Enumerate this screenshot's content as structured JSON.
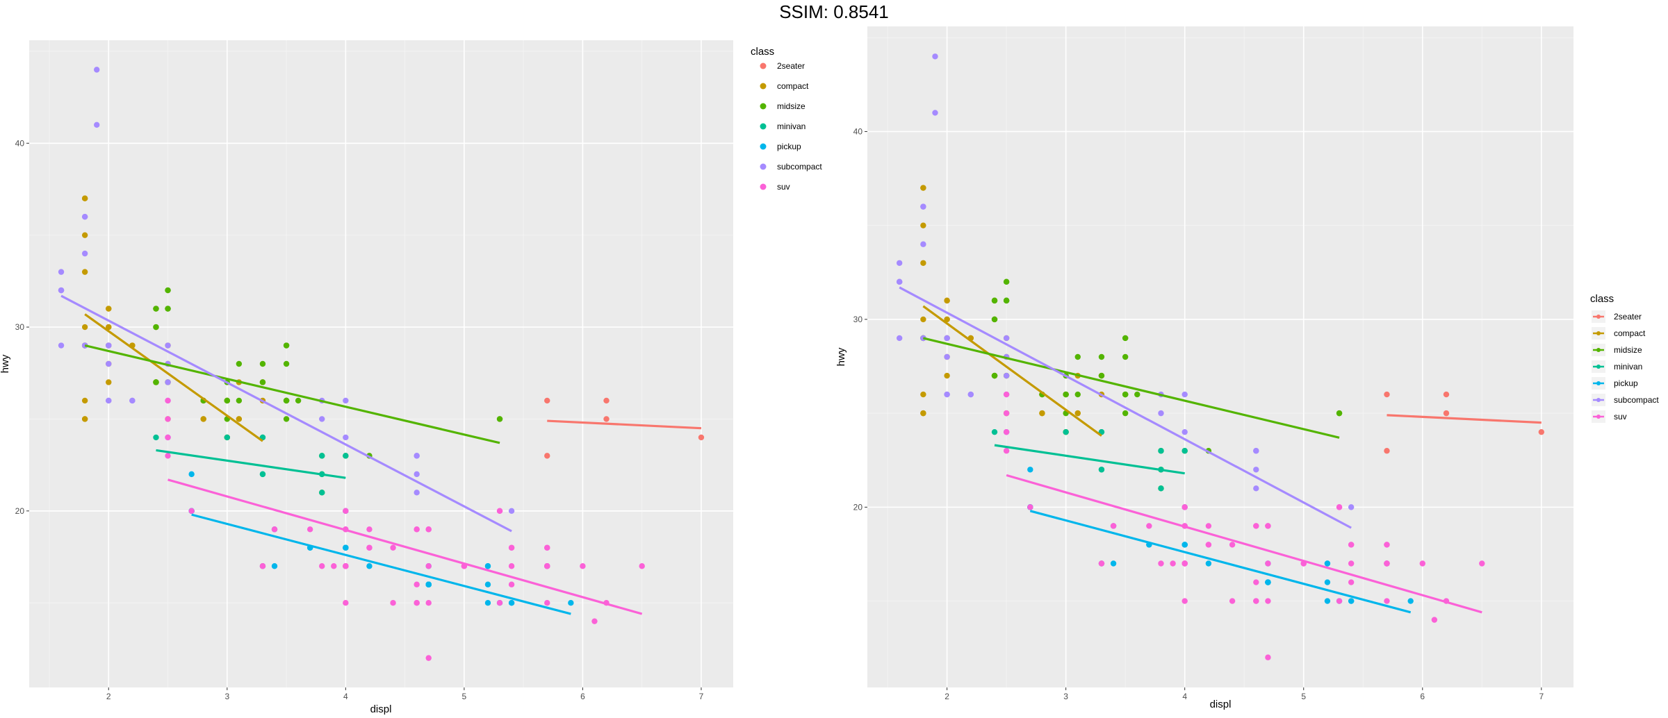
{
  "figure_title": "SSIM: 0.8541",
  "chart_data": [
    {
      "type": "scatter",
      "xlabel": "displ",
      "ylabel": "hwy",
      "xlim": [
        1.33,
        7.27
      ],
      "ylim": [
        10.4,
        45.6
      ],
      "xticks": [
        2,
        3,
        4,
        5,
        6,
        7
      ],
      "yticks": [
        20,
        30,
        40
      ],
      "grid": true,
      "legend": {
        "title": "class",
        "placement": "right-top",
        "key": "point",
        "entries": [
          "2seater",
          "compact",
          "midsize",
          "minivan",
          "pickup",
          "subcompact",
          "suv"
        ]
      }
    },
    {
      "type": "scatter",
      "xlabel": "displ",
      "ylabel": "hwy",
      "xlim": [
        1.33,
        7.27
      ],
      "ylim": [
        10.4,
        45.6
      ],
      "xticks": [
        2,
        3,
        4,
        5,
        6,
        7
      ],
      "yticks": [
        20,
        30,
        40
      ],
      "grid": true,
      "legend": {
        "title": "class",
        "placement": "right-middle",
        "key": "line",
        "entries": [
          "2seater",
          "compact",
          "midsize",
          "minivan",
          "pickup",
          "subcompact",
          "suv"
        ]
      }
    }
  ],
  "colors": {
    "2seater": "#F8766D",
    "compact": "#C49A00",
    "midsize": "#53B400",
    "minivan": "#00C094",
    "pickup": "#00B6EB",
    "subcompact": "#A58AFF",
    "suv": "#FB61D7"
  },
  "series": [
    {
      "name": "2seater",
      "x": [
        5.7,
        5.7,
        6.2,
        6.2,
        7.0
      ],
      "y": [
        26,
        23,
        26,
        25,
        24
      ],
      "fit": [
        [
          5.7,
          24.9
        ],
        [
          7.0,
          24.5
        ]
      ]
    },
    {
      "name": "compact",
      "x": [
        1.8,
        1.8,
        2.0,
        2.0,
        2.8,
        2.8,
        3.1,
        1.8,
        1.8,
        2.0,
        2.0,
        2.8,
        2.8,
        3.1,
        3.1,
        2.4,
        2.4,
        3.0,
        3.3,
        1.8,
        1.8,
        1.8,
        1.8,
        2.2,
        2.2,
        2.4,
        2.4,
        3.0,
        3.0,
        3.3,
        3.3,
        1.8,
        1.8,
        2.0,
        2.0,
        2.8,
        2.5,
        2.5,
        2.5,
        2.5,
        2.0,
        2.0
      ],
      "y": [
        29,
        29,
        31,
        30,
        26,
        26,
        27,
        26,
        25,
        28,
        27,
        25,
        25,
        25,
        25,
        27,
        30,
        26,
        27,
        30,
        33,
        35,
        37,
        29,
        29,
        27,
        31,
        24,
        26,
        27,
        26,
        25,
        37,
        31,
        29,
        26,
        25,
        27,
        28,
        29,
        30,
        29
      ],
      "fit": [
        [
          1.8,
          30.7
        ],
        [
          3.3,
          23.8
        ]
      ]
    },
    {
      "name": "midsize",
      "x": [
        2.8,
        3.1,
        4.2,
        2.4,
        2.4,
        2.4,
        2.4,
        3.5,
        3.5,
        3.6,
        2.5,
        2.5,
        3.5,
        3.5,
        3.0,
        3.0,
        3.5,
        3.3,
        3.3,
        4.0,
        5.3,
        1.8,
        1.8,
        2.5,
        2.5,
        3.0,
        3.5,
        2.4,
        3.0,
        3.0,
        3.5,
        3.8,
        3.8,
        3.8,
        5.3,
        2.4,
        2.4,
        3.1,
        3.5,
        2.5,
        2.5
      ],
      "y": [
        26,
        26,
        23,
        27,
        30,
        27,
        31,
        26,
        29,
        26,
        27,
        31,
        28,
        29,
        25,
        26,
        25,
        28,
        27,
        23,
        25,
        29,
        29,
        31,
        32,
        27,
        26,
        27,
        24,
        26,
        26,
        21,
        22,
        23,
        25,
        31,
        30,
        28,
        26,
        32,
        31
      ],
      "fit": [
        [
          1.8,
          29.0
        ],
        [
          5.3,
          23.7
        ]
      ]
    },
    {
      "name": "minivan",
      "x": [
        2.4,
        3.0,
        3.3,
        3.3,
        3.3,
        3.3,
        3.3,
        3.8,
        3.8,
        3.8,
        4.0
      ],
      "y": [
        24,
        24,
        22,
        22,
        24,
        24,
        17,
        22,
        21,
        23,
        23
      ],
      "fit": [
        [
          2.4,
          23.3
        ],
        [
          4.0,
          21.8
        ]
      ]
    },
    {
      "name": "pickup",
      "x": [
        2.7,
        2.7,
        3.4,
        3.7,
        4.0,
        4.0,
        4.2,
        4.7,
        4.7,
        4.7,
        5.2,
        5.2,
        5.3,
        5.4,
        5.9,
        3.7,
        4.7,
        4.7,
        4.7,
        4.7,
        4.7,
        5.2,
        5.7,
        2.7,
        2.7,
        2.7,
        3.4,
        4.0,
        4.0,
        4.0,
        4.7,
        4.7,
        5.2,
        5.4
      ],
      "y": [
        20,
        20,
        17,
        18,
        18,
        18,
        17,
        16,
        16,
        16,
        15,
        17,
        15,
        15,
        15,
        18,
        16,
        16,
        16,
        16,
        16,
        17,
        17,
        20,
        20,
        22,
        19,
        20,
        18,
        18,
        17,
        16,
        16,
        15
      ],
      "fit": [
        [
          2.7,
          19.8
        ],
        [
          5.9,
          14.4
        ]
      ]
    },
    {
      "name": "subcompact",
      "x": [
        3.8,
        3.8,
        4.0,
        4.0,
        4.6,
        4.6,
        4.6,
        4.6,
        5.4,
        1.6,
        1.6,
        1.6,
        1.6,
        1.6,
        1.8,
        1.8,
        1.8,
        2.0,
        2.0,
        2.5,
        2.5,
        2.2,
        2.2,
        2.5,
        2.5,
        1.9,
        1.9,
        2.0,
        2.0,
        2.5,
        2.5,
        1.8,
        1.8,
        2.0,
        2.0
      ],
      "y": [
        26,
        25,
        26,
        24,
        21,
        22,
        23,
        23,
        20,
        33,
        32,
        32,
        29,
        32,
        34,
        36,
        36,
        29,
        26,
        27,
        26,
        26,
        26,
        24,
        24,
        44,
        41,
        29,
        26,
        28,
        29,
        29,
        29,
        28,
        29
      ],
      "fit": [
        [
          1.6,
          31.7
        ],
        [
          5.4,
          18.9
        ]
      ]
    },
    {
      "name": "suv",
      "x": [
        5.3,
        5.3,
        5.3,
        5.7,
        6.0,
        5.7,
        5.7,
        6.2,
        4.0,
        4.0,
        4.0,
        4.7,
        5.7,
        4.6,
        5.4,
        5.4,
        4.0,
        4.0,
        4.6,
        5.0,
        5.7,
        4.7,
        4.7,
        5.7,
        6.1,
        2.5,
        2.5,
        3.3,
        3.3,
        3.8,
        4.2,
        4.6,
        5.4,
        5.4,
        6.5,
        2.5,
        2.5,
        2.7,
        4.0,
        4.0,
        4.0,
        4.0,
        4.6,
        5.0,
        4.2,
        4.2,
        4.7,
        4.7,
        4.7,
        5.7,
        3.4,
        3.4,
        4.0,
        4.4,
        3.7,
        3.9,
        4.4,
        4.6
      ],
      "y": [
        20,
        15,
        20,
        17,
        17,
        17,
        18,
        15,
        17,
        19,
        20,
        19,
        18,
        19,
        18,
        17,
        17,
        19,
        15,
        17,
        17,
        15,
        12,
        17,
        14,
        26,
        25,
        17,
        17,
        17,
        19,
        19,
        16,
        18,
        17,
        23,
        24,
        20,
        17,
        15,
        17,
        17,
        16,
        17,
        18,
        18,
        17,
        19,
        19,
        15,
        19,
        19,
        20,
        18,
        19,
        17,
        15,
        15
      ],
      "fit": [
        [
          2.5,
          21.7
        ],
        [
          6.5,
          14.4
        ]
      ]
    }
  ]
}
